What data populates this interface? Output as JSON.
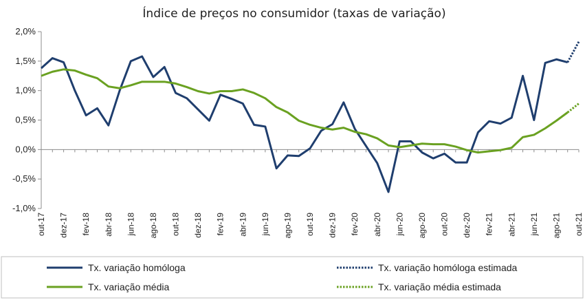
{
  "chart_data": {
    "type": "line",
    "title": "Índice de preços no consumidor  (taxas  de variação)",
    "xlabel": "",
    "ylabel": "",
    "ylim": [
      -1.0,
      2.0
    ],
    "yticks": [
      "2,0%",
      "1,5%",
      "1,0%",
      "0,5%",
      "0,0%",
      "-0,5%",
      "-1,0%"
    ],
    "ytick_values": [
      2.0,
      1.5,
      1.0,
      0.5,
      0.0,
      -0.5,
      -1.0
    ],
    "grid": false,
    "legend_position": "bottom",
    "x": [
      "out-17",
      "nov-17",
      "dez-17",
      "jan-18",
      "fev-18",
      "mar-18",
      "abr-18",
      "mai-18",
      "jun-18",
      "jul-18",
      "ago-18",
      "set-18",
      "out-18",
      "nov-18",
      "dez-18",
      "jan-19",
      "fev-19",
      "mar-19",
      "abr-19",
      "mai-19",
      "jun-19",
      "jul-19",
      "ago-19",
      "set-19",
      "out-19",
      "nov-19",
      "dez-19",
      "jan-20",
      "fev-20",
      "mar-20",
      "abr-20",
      "mai-20",
      "jun-20",
      "jul-20",
      "ago-20",
      "set-20",
      "out-20",
      "nov-20",
      "dez-20",
      "jan-21",
      "fev-21",
      "mar-21",
      "abr-21",
      "mai-21",
      "jun-21",
      "jul-21",
      "ago-21",
      "set-21",
      "out-21"
    ],
    "x_tick_labels": [
      "out-17",
      "dez-17",
      "fev-18",
      "abr-18",
      "jun-18",
      "ago-18",
      "out-18",
      "dez-18",
      "fev-19",
      "abr-19",
      "jun-19",
      "ago-19",
      "out-19",
      "dez-19",
      "fev-20",
      "abr-20",
      "jun-20",
      "ago-20",
      "out-20",
      "dez-20",
      "fev-21",
      "abr-21",
      "jun-21",
      "ago-21",
      "out-21"
    ],
    "series": [
      {
        "name": "Tx. variação homóloga",
        "color": "#1f3e6e",
        "style": "solid",
        "values": [
          1.38,
          1.55,
          1.48,
          1.0,
          0.58,
          0.7,
          0.41,
          1.0,
          1.5,
          1.58,
          1.23,
          1.4,
          0.96,
          0.87,
          0.68,
          0.49,
          0.93,
          0.86,
          0.78,
          0.42,
          0.39,
          -0.32,
          -0.1,
          -0.11,
          0.02,
          0.32,
          0.43,
          0.8,
          0.35,
          0.06,
          -0.23,
          -0.72,
          0.14,
          0.14,
          -0.05,
          -0.15,
          -0.07,
          -0.22,
          -0.22,
          0.29,
          0.48,
          0.44,
          0.54,
          1.25,
          0.5,
          1.47,
          1.53,
          1.48,
          null
        ]
      },
      {
        "name": "Tx. variação homóloga estimada",
        "color": "#1f3e6e",
        "style": "dotted",
        "values": [
          null,
          null,
          null,
          null,
          null,
          null,
          null,
          null,
          null,
          null,
          null,
          null,
          null,
          null,
          null,
          null,
          null,
          null,
          null,
          null,
          null,
          null,
          null,
          null,
          null,
          null,
          null,
          null,
          null,
          null,
          null,
          null,
          null,
          null,
          null,
          null,
          null,
          null,
          null,
          null,
          null,
          null,
          null,
          null,
          null,
          null,
          null,
          1.48,
          1.83
        ]
      },
      {
        "name": "Tx. variação média",
        "color": "#6aa121",
        "style": "solid",
        "values": [
          1.25,
          1.32,
          1.36,
          1.34,
          1.27,
          1.21,
          1.07,
          1.04,
          1.09,
          1.15,
          1.15,
          1.15,
          1.12,
          1.06,
          0.99,
          0.95,
          0.99,
          0.99,
          1.02,
          0.96,
          0.87,
          0.72,
          0.63,
          0.49,
          0.42,
          0.37,
          0.34,
          0.37,
          0.3,
          0.26,
          0.19,
          0.07,
          0.04,
          0.07,
          0.1,
          0.09,
          0.09,
          0.05,
          -0.01,
          -0.05,
          -0.03,
          -0.01,
          0.03,
          0.21,
          0.25,
          0.36,
          0.49,
          0.63,
          null
        ]
      },
      {
        "name": "Tx. variação média  estimada",
        "color": "#6aa121",
        "style": "dotted",
        "values": [
          null,
          null,
          null,
          null,
          null,
          null,
          null,
          null,
          null,
          null,
          null,
          null,
          null,
          null,
          null,
          null,
          null,
          null,
          null,
          null,
          null,
          null,
          null,
          null,
          null,
          null,
          null,
          null,
          null,
          null,
          null,
          null,
          null,
          null,
          null,
          null,
          null,
          null,
          null,
          null,
          null,
          null,
          null,
          null,
          null,
          null,
          null,
          0.63,
          0.78
        ]
      }
    ],
    "legend": [
      {
        "label": "Tx. variação homóloga",
        "series": 0
      },
      {
        "label": "Tx. variação homóloga estimada",
        "series": 1
      },
      {
        "label": "Tx. variação média",
        "series": 2
      },
      {
        "label": "Tx. variação média  estimada",
        "series": 3
      }
    ]
  }
}
